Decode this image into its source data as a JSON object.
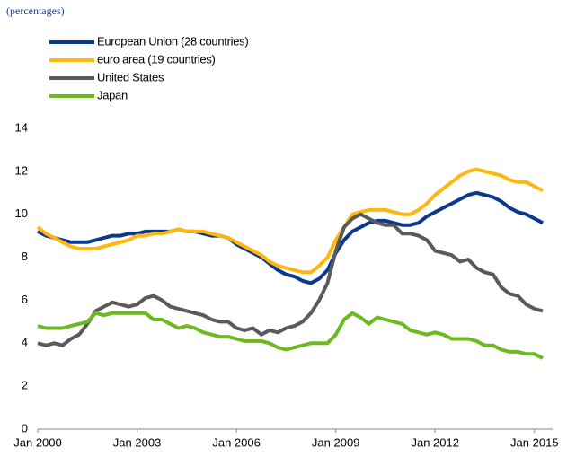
{
  "chart_data": {
    "type": "line",
    "subtitle": "(percentages)",
    "x": [
      "Jan 2000",
      "Apr 2000",
      "Jul 2000",
      "Oct 2000",
      "Jan 2001",
      "Apr 2001",
      "Jul 2001",
      "Oct 2001",
      "Jan 2002",
      "Apr 2002",
      "Jul 2002",
      "Oct 2002",
      "Jan 2003",
      "Apr 2003",
      "Jul 2003",
      "Oct 2003",
      "Jan 2004",
      "Apr 2004",
      "Jul 2004",
      "Oct 2004",
      "Jan 2005",
      "Apr 2005",
      "Jul 2005",
      "Oct 2005",
      "Jan 2006",
      "Apr 2006",
      "Jul 2006",
      "Oct 2006",
      "Jan 2007",
      "Apr 2007",
      "Jul 2007",
      "Oct 2007",
      "Jan 2008",
      "Apr 2008",
      "Jul 2008",
      "Oct 2008",
      "Jan 2009",
      "Apr 2009",
      "Jul 2009",
      "Oct 2009",
      "Jan 2010",
      "Apr 2010",
      "Jul 2010",
      "Oct 2010",
      "Jan 2011",
      "Apr 2011",
      "Jul 2011",
      "Oct 2011",
      "Jan 2012",
      "Apr 2012",
      "Jul 2012",
      "Oct 2012",
      "Jan 2013",
      "Apr 2013",
      "Jul 2013",
      "Oct 2013",
      "Jan 2014",
      "Apr 2014",
      "Jul 2014",
      "Oct 2014",
      "Jan 2015",
      "Apr 2015"
    ],
    "series": [
      {
        "name": "European Union (28 countries)",
        "color": "#0b3a8c",
        "values": [
          9.2,
          9.0,
          8.9,
          8.8,
          8.7,
          8.7,
          8.7,
          8.8,
          8.9,
          9.0,
          9.0,
          9.1,
          9.1,
          9.2,
          9.2,
          9.2,
          9.2,
          9.3,
          9.2,
          9.2,
          9.1,
          9.0,
          9.0,
          8.9,
          8.6,
          8.4,
          8.2,
          8.0,
          7.7,
          7.4,
          7.2,
          7.1,
          6.9,
          6.8,
          7.0,
          7.4,
          8.2,
          8.8,
          9.2,
          9.4,
          9.6,
          9.7,
          9.7,
          9.6,
          9.5,
          9.5,
          9.6,
          9.9,
          10.1,
          10.3,
          10.5,
          10.7,
          10.9,
          11.0,
          10.9,
          10.8,
          10.6,
          10.3,
          10.1,
          10.0,
          9.8,
          9.6
        ]
      },
      {
        "name": "euro area (19 countries)",
        "color": "#ffb70f",
        "values": [
          9.4,
          9.1,
          8.9,
          8.7,
          8.5,
          8.4,
          8.4,
          8.4,
          8.5,
          8.6,
          8.7,
          8.8,
          9.0,
          9.0,
          9.1,
          9.1,
          9.2,
          9.3,
          9.2,
          9.2,
          9.2,
          9.1,
          9.0,
          8.9,
          8.7,
          8.5,
          8.3,
          8.1,
          7.8,
          7.6,
          7.5,
          7.4,
          7.3,
          7.3,
          7.6,
          8.0,
          8.8,
          9.4,
          10.0,
          10.1,
          10.2,
          10.2,
          10.2,
          10.1,
          10.0,
          10.0,
          10.2,
          10.5,
          10.9,
          11.2,
          11.5,
          11.8,
          12.0,
          12.1,
          12.0,
          11.9,
          11.8,
          11.6,
          11.5,
          11.5,
          11.3,
          11.1
        ]
      },
      {
        "name": "United States",
        "color": "#5a5a5a",
        "values": [
          4.0,
          3.9,
          4.0,
          3.9,
          4.2,
          4.4,
          4.9,
          5.5,
          5.7,
          5.9,
          5.8,
          5.7,
          5.8,
          6.1,
          6.2,
          6.0,
          5.7,
          5.6,
          5.5,
          5.4,
          5.3,
          5.1,
          5.0,
          5.0,
          4.7,
          4.6,
          4.7,
          4.4,
          4.6,
          4.5,
          4.7,
          4.8,
          5.0,
          5.4,
          6.0,
          6.8,
          8.3,
          9.4,
          9.8,
          10.0,
          9.8,
          9.6,
          9.5,
          9.5,
          9.1,
          9.1,
          9.0,
          8.8,
          8.3,
          8.2,
          8.1,
          7.8,
          7.9,
          7.5,
          7.3,
          7.2,
          6.6,
          6.3,
          6.2,
          5.8,
          5.6,
          5.5
        ]
      },
      {
        "name": "Japan",
        "color": "#6cbb1e",
        "values": [
          4.8,
          4.7,
          4.7,
          4.7,
          4.8,
          4.9,
          5.0,
          5.4,
          5.3,
          5.4,
          5.4,
          5.4,
          5.4,
          5.4,
          5.1,
          5.1,
          4.9,
          4.7,
          4.8,
          4.7,
          4.5,
          4.4,
          4.3,
          4.3,
          4.2,
          4.1,
          4.1,
          4.1,
          4.0,
          3.8,
          3.7,
          3.8,
          3.9,
          4.0,
          4.0,
          4.0,
          4.4,
          5.1,
          5.4,
          5.2,
          4.9,
          5.2,
          5.1,
          5.0,
          4.9,
          4.6,
          4.5,
          4.4,
          4.5,
          4.4,
          4.2,
          4.2,
          4.2,
          4.1,
          3.9,
          3.9,
          3.7,
          3.6,
          3.6,
          3.5,
          3.5,
          3.3
        ]
      }
    ],
    "xlim": [
      "Jan 2000",
      "Apr 2015"
    ],
    "xticks": [
      "Jan 2000",
      "Jan 2003",
      "Jan 2006",
      "Jan 2009",
      "Jan 2012",
      "Jan 2015"
    ],
    "ylim": [
      0,
      14
    ],
    "yticks": [
      0,
      2,
      4,
      6,
      8,
      10,
      12,
      14
    ],
    "grid": false
  }
}
